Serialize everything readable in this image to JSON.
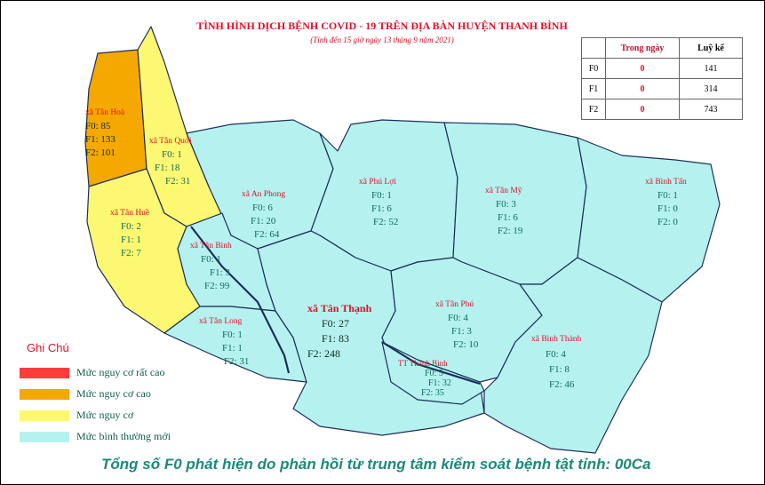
{
  "title": "TÌNH HÌNH DỊCH BỆNH COVID - 19 TRÊN ĐỊA BÀN HUYỆN THANH BÌNH",
  "subtitle": "(Tính đến 15 giờ ngày 13 tháng 9 năm 2021)",
  "stats": {
    "headers": [
      "",
      "Trong ngày",
      "Luỹ kế"
    ],
    "rows": [
      {
        "label": "F0",
        "today": "0",
        "total": "141"
      },
      {
        "label": "F1",
        "today": "0",
        "total": "314"
      },
      {
        "label": "F2",
        "today": "0",
        "total": "743"
      }
    ]
  },
  "regions": {
    "tan_hoa": {
      "name": "xã Tân Hoà",
      "f0": "F0: 85",
      "f1": "F1: 133",
      "f2": "F2: 101",
      "risk": "high"
    },
    "tan_quoi": {
      "name": "xã Tân Quới",
      "f0": "F0: 1",
      "f1": "F1: 18",
      "f2": "F2: 31",
      "risk": "risk"
    },
    "tan_hue": {
      "name": "xã Tân Huề",
      "f0": "F0: 2",
      "f1": "F1: 1",
      "f2": "F2: 7",
      "risk": "risk"
    },
    "an_phong": {
      "name": "xã An Phong",
      "f0": "F0: 6",
      "f1": "F1: 20",
      "f2": "F2: 64",
      "risk": "normal"
    },
    "tan_binh": {
      "name": "xã Tân Bình",
      "f0": "F0: 1",
      "f1": "F1: 3",
      "f2": "F2: 99",
      "risk": "normal"
    },
    "tan_long": {
      "name": "xã Tân Long",
      "f0": "F0: 1",
      "f1": "F1: 1",
      "f2": "F2: 31",
      "risk": "normal"
    },
    "phu_loi": {
      "name": "xã Phú Lợi",
      "f0": "F0: 1",
      "f1": "F1: 6",
      "f2": "F2: 52",
      "risk": "normal"
    },
    "tan_my": {
      "name": "xã Tân Mỹ",
      "f0": "F0: 3",
      "f1": "F1: 6",
      "f2": "F2: 19",
      "risk": "normal"
    },
    "binh_tan": {
      "name": "xã Bình Tấn",
      "f0": "F0: 1",
      "f1": "F1: 0",
      "f2": "F2: 0",
      "risk": "normal"
    },
    "tan_thanh": {
      "name": "xã Tân Thạnh",
      "f0": "F0: 27",
      "f1": "F1: 83",
      "f2": "F2: 248",
      "risk": "normal"
    },
    "tan_phu": {
      "name": "xã Tân Phú",
      "f0": "F0: 4",
      "f1": "F1: 3",
      "f2": "F2: 10",
      "risk": "normal"
    },
    "tt_thanh_binh": {
      "name": "TT Thanh Bình",
      "f0": "F0: 5",
      "f1": "F1: 32",
      "f2": "F2: 35",
      "risk": "normal"
    },
    "binh_thanh": {
      "name": "xã Bình Thành",
      "f0": "F0: 4",
      "f1": "F1: 8",
      "f2": "F2: 46",
      "risk": "normal"
    }
  },
  "legend": {
    "title": "Ghi Chú",
    "items": [
      {
        "label": "Mức  nguy cơ rất cao",
        "color": "#ff3c3c"
      },
      {
        "label": "Mức  nguy cơ cao",
        "color": "#f5a800"
      },
      {
        "label": "Mức  nguy cơ",
        "color": "#fcf872"
      },
      {
        "label": "Mức  bình thường mới",
        "color": "#b5f2ef"
      }
    ]
  },
  "colors": {
    "high": "#f5a800",
    "risk": "#fcf872",
    "normal": "#b5f2ef",
    "border": "#1c2e5a"
  },
  "footer": "Tổng số F0 phát hiện do phản hồi từ trung tâm kiểm soát bệnh tật tỉnh: 00Ca"
}
